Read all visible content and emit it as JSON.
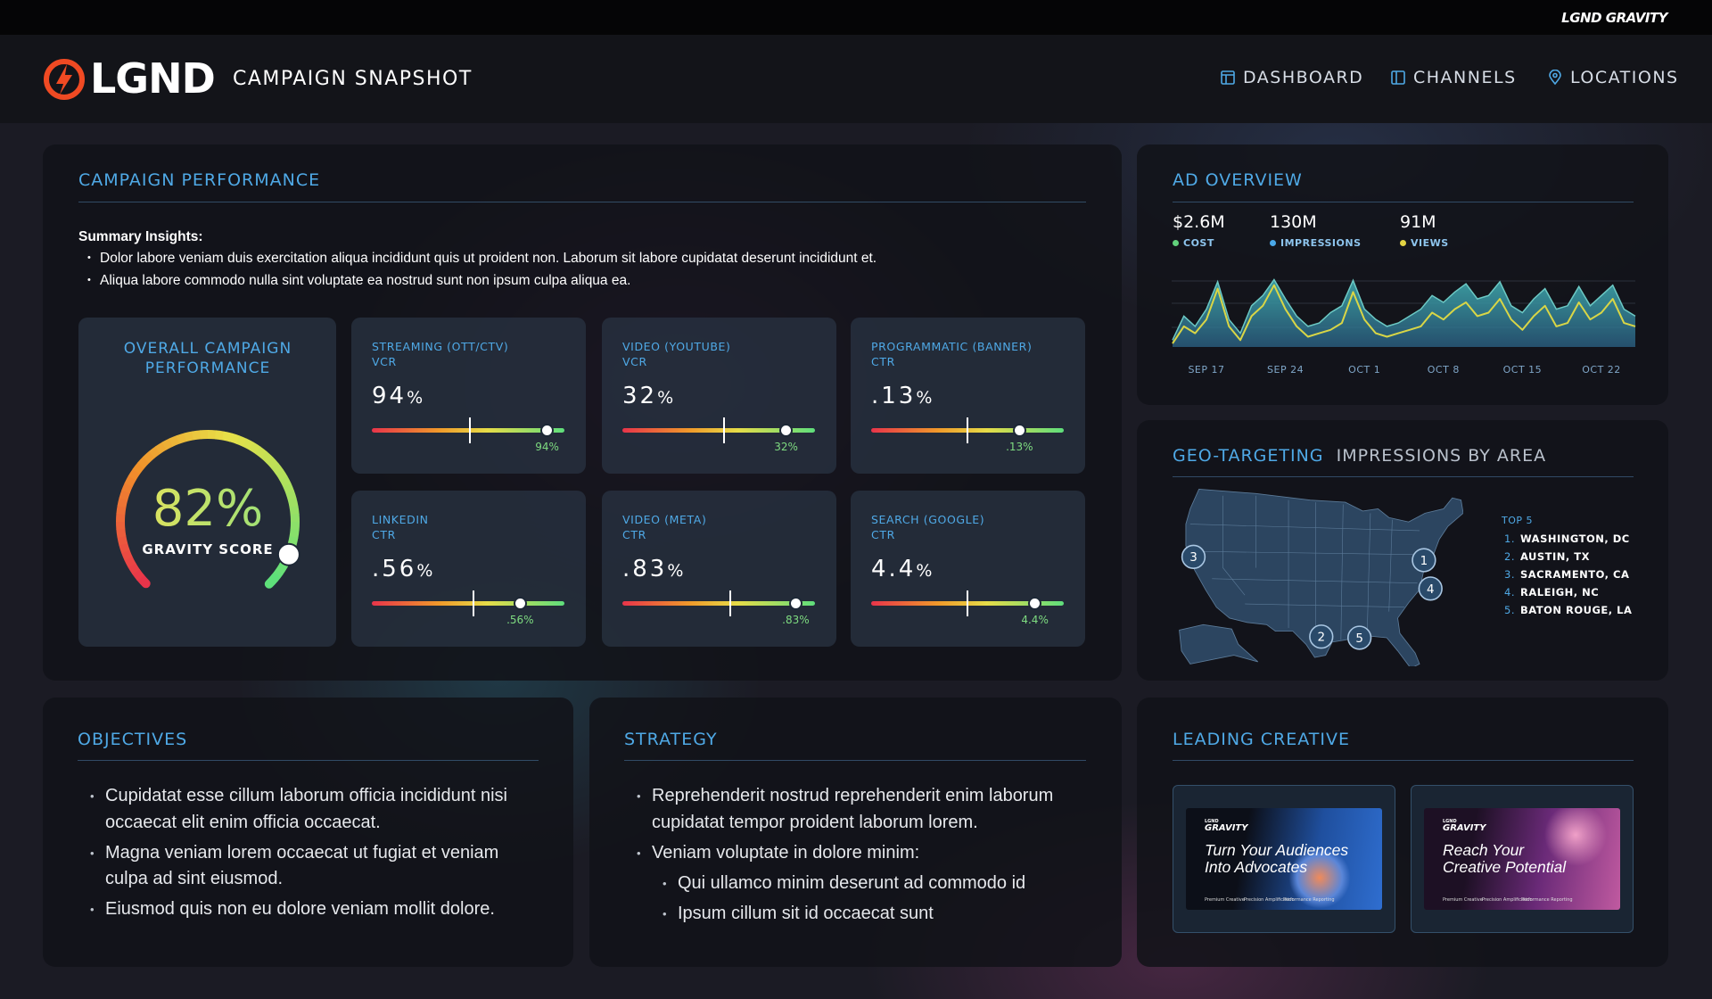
{
  "top_bar": {
    "brand": "LGND GRAVITY"
  },
  "header": {
    "logo": "LGND",
    "title": "CAMPAIGN SNAPSHOT",
    "nav": [
      "DASHBOARD",
      "CHANNELS",
      "LOCATIONS"
    ]
  },
  "campaign_performance": {
    "title": "CAMPAIGN PERFORMANCE",
    "summary_title": "Summary Insights:",
    "summary": [
      "Dolor labore veniam duis exercitation aliqua incididunt quis ut proident non. Laborum sit labore cupidatat deserunt incididunt et.",
      "Aliqua labore commodo nulla sint voluptate ea nostrud sunt non ipsum culpa aliqua ea."
    ],
    "overall": {
      "title": "OVERALL CAMPAIGN PERFORMANCE",
      "score": 82,
      "unit": "%",
      "label": "GRAVITY SCORE"
    },
    "metrics": [
      {
        "channel": "STREAMING (OTT/CTV)",
        "metric": "VCR",
        "value": 94,
        "unit": "%"
      },
      {
        "channel": "VIDEO (YOUTUBE)",
        "metric": "VCR",
        "value": 32,
        "unit": "%"
      },
      {
        "channel": "PROGRAMMATIC (BANNER)",
        "metric": "CTR",
        "value": 0.13,
        "label": ".13",
        "unit": "%"
      },
      {
        "channel": "LINKEDIN",
        "metric": "CTR",
        "value": 0.56,
        "label": ".56",
        "unit": "%"
      },
      {
        "channel": "VIDEO (META)",
        "metric": "CTR",
        "value": 0.83,
        "label": ".83",
        "unit": "%"
      },
      {
        "channel": "SEARCH (GOOGLE)",
        "metric": "CTR",
        "value": 4.4,
        "unit": "%"
      }
    ]
  },
  "ad_overview": {
    "title": "AD OVERVIEW",
    "kpis": [
      {
        "value": "$2.6M",
        "label": "COST",
        "color": "#62d27c"
      },
      {
        "value": "130M",
        "label": "IMPRESSIONS",
        "color": "#4aa8e8"
      },
      {
        "value": "91M",
        "label": "VIEWS",
        "color": "#e2d443"
      }
    ],
    "chart": {
      "type": "area",
      "categories": [
        null,
        null,
        null,
        "SEP 17",
        null,
        null,
        null,
        null,
        null,
        null,
        "SEP 24",
        null,
        null,
        null,
        null,
        null,
        null,
        "OCT 1",
        null,
        null,
        null,
        null,
        null,
        null,
        "OCT 8",
        null,
        null,
        null,
        null,
        null,
        null,
        "OCT 15",
        null,
        null,
        null,
        null,
        null,
        null,
        "OCT 22",
        null,
        null,
        null
      ],
      "ylim": [
        0,
        100
      ],
      "series": [
        {
          "color": "#3fa9ad",
          "style": "area",
          "values": [
            10,
            45,
            30,
            55,
            95,
            40,
            20,
            60,
            75,
            98,
            70,
            45,
            30,
            35,
            50,
            60,
            97,
            55,
            40,
            30,
            35,
            45,
            55,
            75,
            65,
            80,
            92,
            70,
            75,
            95,
            60,
            50,
            70,
            85,
            55,
            60,
            88,
            60,
            75,
            90,
            55,
            45
          ]
        },
        {
          "color": "#d9d646",
          "style": "line",
          "values": [
            5,
            30,
            20,
            40,
            85,
            30,
            10,
            45,
            60,
            90,
            55,
            30,
            15,
            20,
            25,
            35,
            80,
            40,
            20,
            15,
            20,
            25,
            30,
            50,
            40,
            55,
            65,
            45,
            50,
            70,
            40,
            25,
            45,
            60,
            30,
            35,
            65,
            40,
            50,
            70,
            35,
            30
          ]
        }
      ]
    }
  },
  "geo_targeting": {
    "title": "GEO-TARGETING",
    "subtitle": "IMPRESSIONS BY AREA",
    "markers": [
      "1",
      "2",
      "3",
      "4",
      "5"
    ],
    "top_title": "TOP 5",
    "top": [
      {
        "rank": "1.",
        "name": "WASHINGTON, DC"
      },
      {
        "rank": "2.",
        "name": "AUSTIN, TX"
      },
      {
        "rank": "3.",
        "name": "SACRAMENTO, CA"
      },
      {
        "rank": "4.",
        "name": "RALEIGH, NC"
      },
      {
        "rank": "5.",
        "name": "BATON ROUGE, LA"
      }
    ]
  },
  "objectives": {
    "title": "OBJECTIVES",
    "items": [
      "Cupidatat esse cillum laborum officia incididunt nisi occaecat elit enim officia occaecat.",
      "Magna veniam lorem occaecat ut fugiat et veniam culpa ad sint eiusmod.",
      "Eiusmod quis non eu dolore veniam mollit dolore."
    ]
  },
  "strategy": {
    "title": "STRATEGY",
    "items": [
      {
        "text": "Reprehenderit nostrud reprehenderit enim laborum cupidatat tempor proident laborum lorem."
      },
      {
        "text": "Veniam voluptate in dolore minim:",
        "sub": [
          "Qui ullamco minim deserunt ad commodo id",
          "Ipsum cillum sit id occaecat sunt"
        ]
      }
    ]
  },
  "leading_creative": {
    "title": "LEADING CREATIVE",
    "items": [
      {
        "brand_small": "LGND",
        "brand": "GRAVITY",
        "headline": [
          "Turn Your Audiences",
          "Into Advocates"
        ],
        "footer": [
          "Premium Creative",
          "Precision Amplification",
          "Performance Reporting"
        ]
      },
      {
        "brand_small": "LGND",
        "brand": "GRAVITY",
        "headline": [
          "Reach Your",
          "Creative Potential"
        ],
        "footer": [
          "Premium Creative",
          "Precision Amplification",
          "Performance Reporting"
        ]
      }
    ]
  }
}
